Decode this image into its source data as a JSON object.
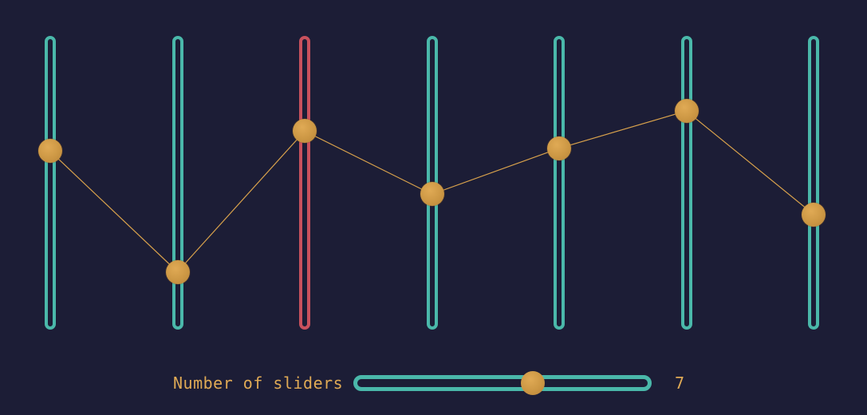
{
  "colors": {
    "background": "#1c1d36",
    "track": "#4ab8aa",
    "track_active": "#c8515d",
    "knob": "#cc9744",
    "line": "#d9a24c",
    "text": "#e0aa55"
  },
  "sliders": {
    "active_index": 2,
    "values": [
      0.61,
      0.19,
      0.68,
      0.46,
      0.62,
      0.75,
      0.39
    ]
  },
  "controls": {
    "count_label": "Number of sliders",
    "count_value": "7",
    "count_fraction": 0.61
  }
}
